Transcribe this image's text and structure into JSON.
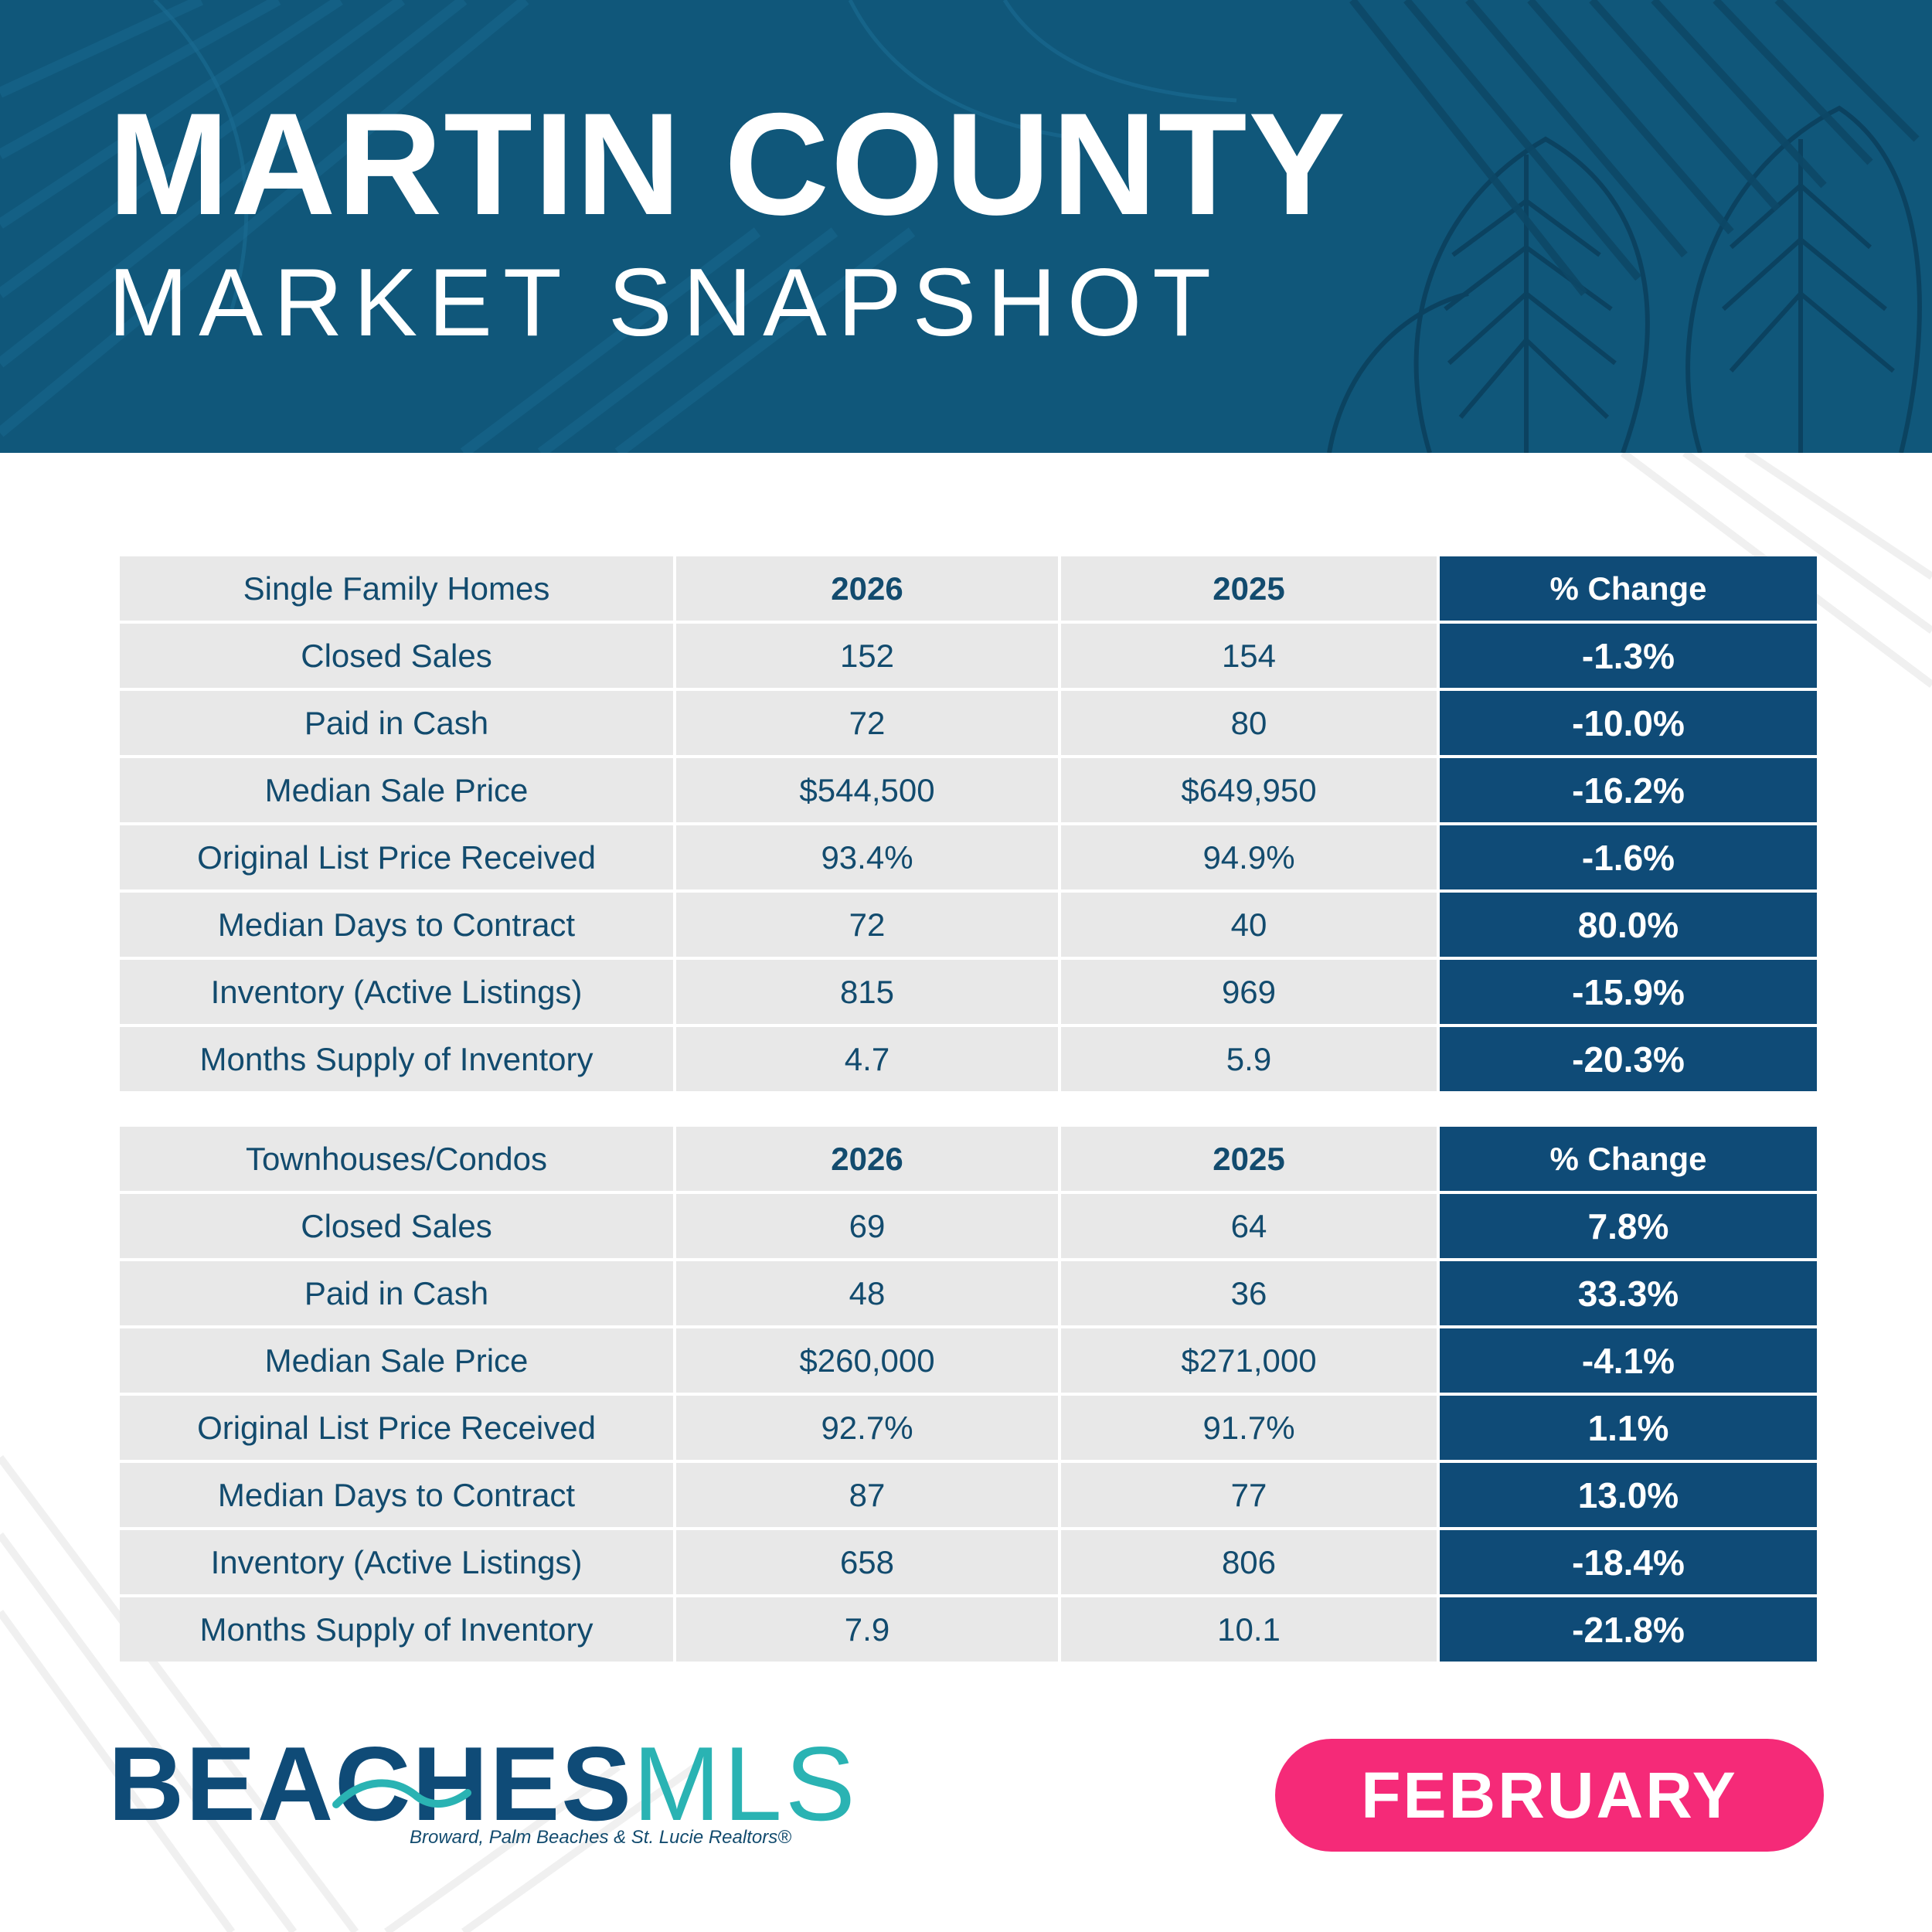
{
  "header": {
    "title": "MARTIN COUNTY",
    "subtitle": "MARKET SNAPSHOT"
  },
  "single_family": {
    "headers": [
      "Single Family Homes",
      "2026",
      "2025",
      "% Change"
    ],
    "rows": [
      [
        "Closed Sales",
        "152",
        "154",
        "-1.3%"
      ],
      [
        "Paid in Cash",
        "72",
        "80",
        "-10.0%"
      ],
      [
        "Median Sale Price",
        "$544,500",
        "$649,950",
        "-16.2%"
      ],
      [
        "Original List Price Received",
        "93.4%",
        "94.9%",
        "-1.6%"
      ],
      [
        "Median Days to Contract",
        "72",
        "40",
        "80.0%"
      ],
      [
        "Inventory (Active Listings)",
        "815",
        "969",
        "-15.9%"
      ],
      [
        "Months Supply of Inventory",
        "4.7",
        "5.9",
        "-20.3%"
      ]
    ]
  },
  "townhouses_condos": {
    "headers": [
      "Townhouses/Condos",
      "2026",
      "2025",
      "% Change"
    ],
    "rows": [
      [
        "Closed Sales",
        "69",
        "64",
        "7.8%"
      ],
      [
        "Paid in Cash",
        "48",
        "36",
        "33.3%"
      ],
      [
        "Median Sale Price",
        "$260,000",
        "$271,000",
        "-4.1%"
      ],
      [
        "Original List Price Received",
        "92.7%",
        "91.7%",
        "1.1%"
      ],
      [
        "Median Days to Contract",
        "87",
        "77",
        "13.0%"
      ],
      [
        "Inventory (Active Listings)",
        "658",
        "806",
        "-18.4%"
      ],
      [
        "Months Supply of Inventory",
        "7.9",
        "10.1",
        "-21.8%"
      ]
    ]
  },
  "footer": {
    "logo_bold": "BEACHES",
    "logo_light": "MLS",
    "logo_tagline": "Broward, Palm Beaches & St. Lucie Realtors®",
    "month": "FEBRUARY"
  },
  "colors": {
    "banner": "#10577a",
    "table_cell": "#e8e8e8",
    "change_cell": "#0f4b77",
    "text_navy": "#124b6e",
    "logo_teal": "#2ab3b3",
    "month_pill": "#f52a78"
  }
}
